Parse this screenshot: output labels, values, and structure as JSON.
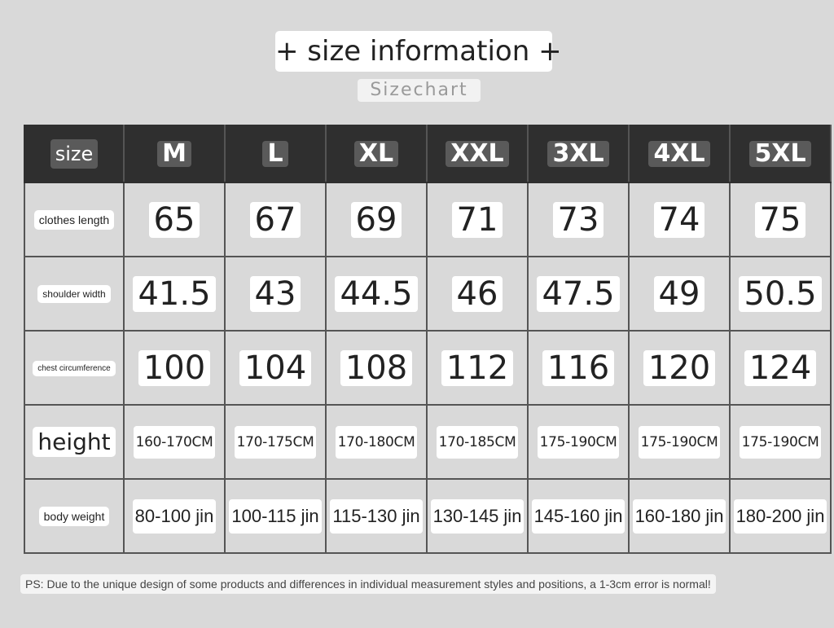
{
  "title": "+ size information +",
  "subtitle": "Sizechart",
  "table": {
    "header_label": "size",
    "sizes": [
      "M",
      "L",
      "XL",
      "XXL",
      "3XL",
      "4XL",
      "5XL"
    ],
    "rows": [
      {
        "label": "clothes length",
        "style": "",
        "kind": "num",
        "values": [
          "65",
          "67",
          "69",
          "71",
          "73",
          "74",
          "75"
        ]
      },
      {
        "label": "shoulder width",
        "style": "small-mid",
        "kind": "num",
        "values": [
          "41.5",
          "43",
          "44.5",
          "46",
          "47.5",
          "49",
          "50.5"
        ]
      },
      {
        "label": "chest circumference",
        "style": "small",
        "kind": "num",
        "values": [
          "100",
          "104",
          "108",
          "112",
          "116",
          "120",
          "124"
        ]
      },
      {
        "label": "height",
        "style": "big",
        "kind": "h",
        "values": [
          "160-170CM",
          "170-175CM",
          "170-180CM",
          "170-185CM",
          "175-190CM",
          "175-190CM",
          "175-190CM"
        ]
      },
      {
        "label": "body weight",
        "style": "",
        "kind": "w",
        "values": [
          "80-100 jin",
          "100-115 jin",
          "115-130 jin",
          "130-145 jin",
          "145-160 jin",
          "160-180 jin",
          "180-200 jin"
        ]
      }
    ]
  },
  "note": "PS: Due to the unique design of some products and differences in individual measurement styles and positions, a 1-3cm error is normal!",
  "colors": {
    "background": "#d9d9d9",
    "header": "#2f2f2f",
    "chip": "#ffffff"
  }
}
